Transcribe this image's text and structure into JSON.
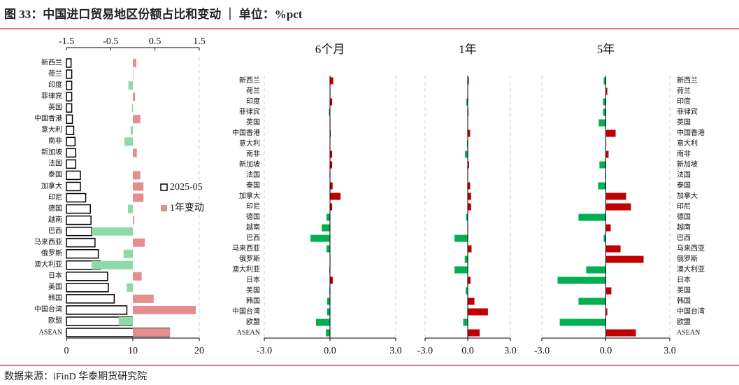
{
  "header": {
    "title": "图 33：中国进口贸易地区份额占比和变动 ｜ 单位：%pct"
  },
  "footer": {
    "source": "数据来源：iFinD   华泰期货研究院"
  },
  "chart_data": [
    {
      "type": "hbar",
      "categories": [
        "新西兰",
        "荷兰",
        "印度",
        "菲律宾",
        "英国",
        "中国香港",
        "意大利",
        "南非",
        "新加坡",
        "法国",
        "泰国",
        "加拿大",
        "印尼",
        "德国",
        "越南",
        "巴西",
        "马来西亚",
        "俄罗斯",
        "澳大利亚",
        "日本",
        "美国",
        "韩国",
        "中国台湾",
        "欧盟",
        "ASEAN"
      ],
      "category_side": "left",
      "series": [
        {
          "name": "2025-05",
          "color": "#ffffff",
          "stroke": "#000000",
          "values": [
            0.7,
            0.8,
            0.8,
            0.8,
            0.8,
            0.9,
            1.1,
            1.3,
            1.4,
            1.4,
            2.1,
            2.1,
            2.9,
            3.6,
            3.7,
            3.8,
            4.3,
            4.8,
            5.1,
            6.2,
            6.3,
            7.2,
            9.1,
            9.9,
            15.5
          ]
        },
        {
          "name": "1年变动",
          "color": "#e48f8f",
          "negative_color": "#8fd9ab",
          "axis": "x2",
          "values": [
            0.08,
            0.01,
            -0.1,
            0.05,
            -0.02,
            0.17,
            -0.05,
            -0.19,
            0.09,
            0,
            0.17,
            0.24,
            0.24,
            -0.11,
            0.03,
            -0.93,
            0.27,
            -0.21,
            -0.93,
            0.2,
            -0.14,
            0.47,
            1.42,
            -0.32,
            0.84
          ]
        }
      ],
      "xlim": [
        0,
        20
      ],
      "xticks": [
        0,
        10,
        20
      ],
      "x2lim": [
        -1.5,
        1.5
      ],
      "x2ticks": [
        -1.5,
        -0.5,
        0.5,
        1.5
      ],
      "grid": true,
      "legend": "right"
    },
    {
      "type": "hbar",
      "title": "6个月",
      "categories": [
        "新西兰",
        "荷兰",
        "印度",
        "菲律宾",
        "英国",
        "中国香港",
        "意大利",
        "南非",
        "新加坡",
        "法国",
        "泰国",
        "加拿大",
        "印尼",
        "德国",
        "越南",
        "巴西",
        "马来西亚",
        "俄罗斯",
        "澳大利亚",
        "日本",
        "美国",
        "韩国",
        "中国台湾",
        "欧盟",
        "ASEAN"
      ],
      "category_side": "left",
      "values": [
        0.15,
        0.02,
        0.1,
        -0.05,
        0.02,
        0.03,
        0.01,
        0.1,
        0.1,
        -0.02,
        0.12,
        0.48,
        0.1,
        -0.16,
        -0.38,
        -0.89,
        -0.16,
        0.02,
        -0.03,
        0.13,
        -0.03,
        -0.13,
        -0.13,
        -0.64,
        -0.19
      ],
      "color": "#c00000",
      "negative_color": "#00b050",
      "xlim": [
        -3,
        3
      ],
      "xticks": [
        {
          "value": -3,
          "label": "-3.0"
        },
        {
          "value": 0,
          "label": "0.0"
        },
        {
          "value": 3,
          "label": "3.0"
        }
      ],
      "grid": true
    },
    {
      "type": "hbar",
      "title": "1年",
      "values": [
        0.08,
        0.01,
        -0.1,
        0.05,
        -0.02,
        0.17,
        -0.05,
        -0.19,
        0.09,
        0,
        0.17,
        0.24,
        0.24,
        -0.11,
        0.03,
        -0.93,
        0.27,
        -0.21,
        -0.93,
        0.2,
        -0.14,
        0.47,
        1.42,
        -0.32,
        0.84
      ],
      "color": "#c00000",
      "negative_color": "#00b050",
      "xlim": [
        -3,
        3
      ],
      "xticks": [
        {
          "value": -3,
          "label": "-3.0"
        },
        {
          "value": 0,
          "label": "0.0"
        },
        {
          "value": 3,
          "label": "3.0"
        }
      ],
      "grid": true
    },
    {
      "type": "hbar",
      "title": "5年",
      "categories": [
        "新西兰",
        "荷兰",
        "印度",
        "菲律宾",
        "英国",
        "中国香港",
        "意大利",
        "南非",
        "新加坡",
        "法国",
        "泰国",
        "加拿大",
        "印尼",
        "德国",
        "越南",
        "巴西",
        "马来西亚",
        "俄罗斯",
        "澳大利亚",
        "日本",
        "美国",
        "韩国",
        "中国台湾",
        "欧盟",
        "ASEAN"
      ],
      "category_side": "right",
      "values": [
        -0.1,
        0.07,
        -0.13,
        -0.13,
        -0.33,
        0.46,
        0.02,
        0.13,
        -0.3,
        -0.03,
        -0.36,
        0.95,
        1.18,
        -1.28,
        0.23,
        -0.1,
        0.69,
        1.77,
        -0.92,
        -2.26,
        0.26,
        -1.28,
        0.07,
        -2.16,
        1.41
      ],
      "color": "#c00000",
      "negative_color": "#00b050",
      "xlim": [
        -3,
        3
      ],
      "xticks": [
        {
          "value": -3,
          "label": "-3.0"
        },
        {
          "value": 0,
          "label": "0.0"
        },
        {
          "value": 3,
          "label": "3.0"
        }
      ],
      "grid": true
    }
  ]
}
